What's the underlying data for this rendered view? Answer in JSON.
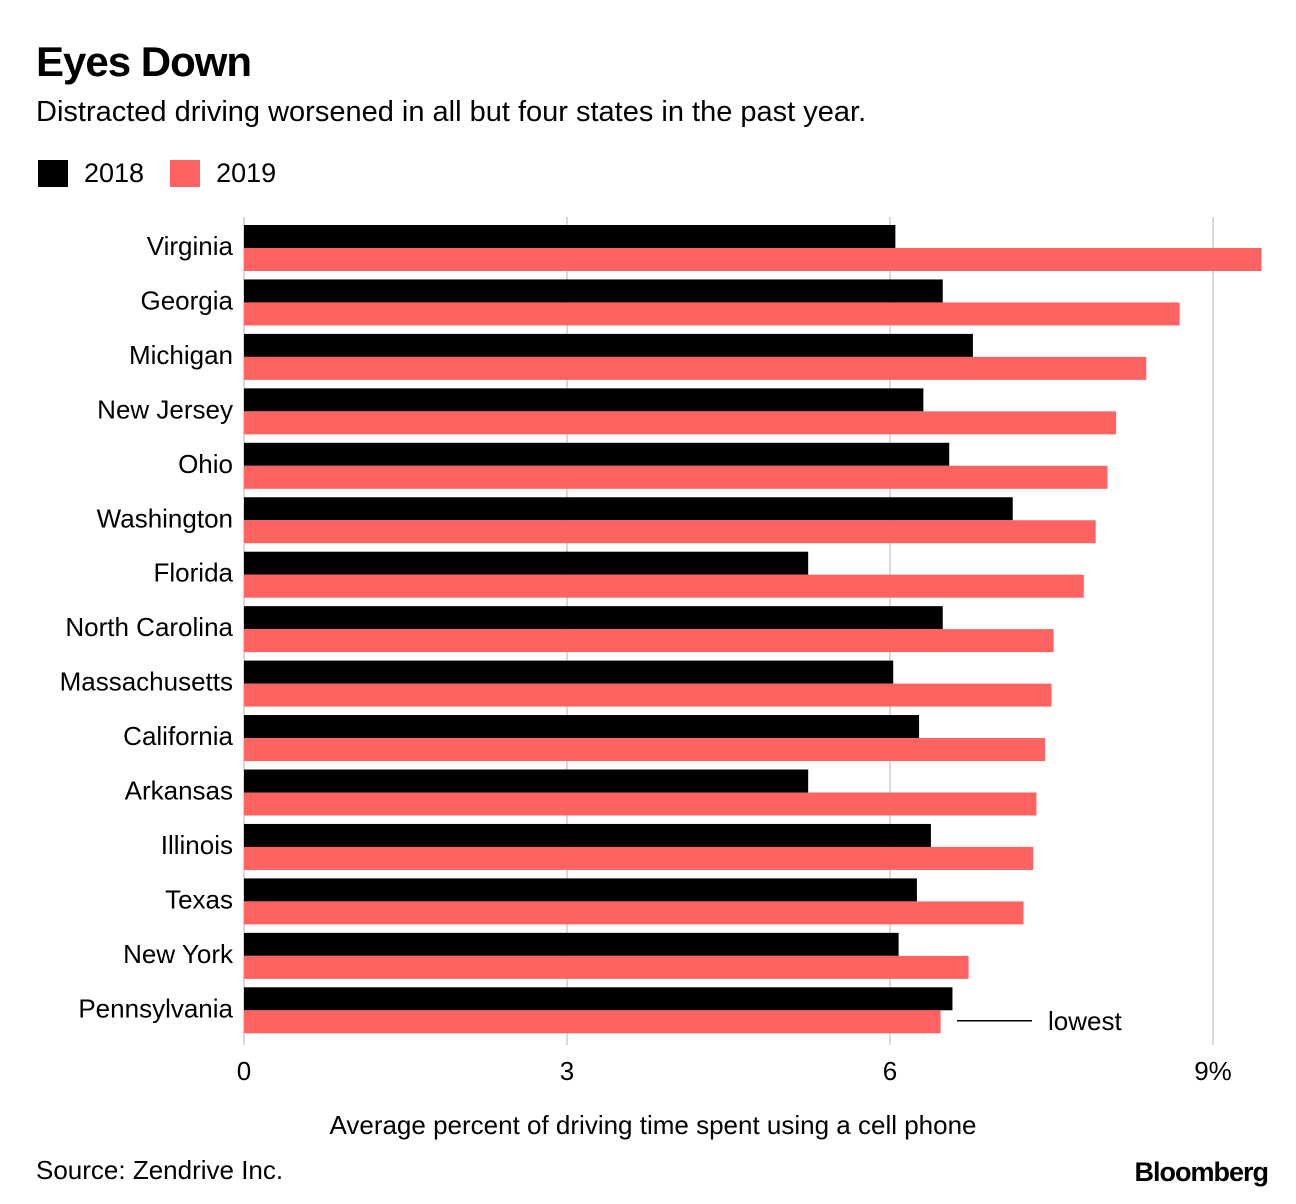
{
  "chart_data": {
    "type": "bar",
    "orientation": "horizontal",
    "title": "Eyes Down",
    "subtitle": "Distracted driving worsened in all but four states in the past year.",
    "xlabel": "Average percent of driving time spent using a cell phone",
    "xlim": [
      0,
      9.5
    ],
    "xticks": [
      "0",
      "3",
      "6",
      "9%"
    ],
    "xtick_values": [
      0,
      3,
      6,
      9
    ],
    "grid": true,
    "legend_position": "top-left",
    "categories": [
      "Virginia",
      "Georgia",
      "Michigan",
      "New Jersey",
      "Ohio",
      "Washington",
      "Florida",
      "North Carolina",
      "Massachusetts",
      "California",
      "Arkansas",
      "Illinois",
      "Texas",
      "New York",
      "Pennsylvania"
    ],
    "series": [
      {
        "name": "2018",
        "color": "#000000",
        "values": [
          6.05,
          6.49,
          6.77,
          6.31,
          6.55,
          7.14,
          5.24,
          6.49,
          6.03,
          6.27,
          5.24,
          6.38,
          6.25,
          6.08,
          6.58
        ]
      },
      {
        "name": "2019",
        "color": "#ff6361",
        "values": [
          9.45,
          8.69,
          8.38,
          8.1,
          8.02,
          7.91,
          7.8,
          7.52,
          7.5,
          7.44,
          7.36,
          7.33,
          7.24,
          6.73,
          6.47
        ]
      }
    ],
    "annotation": {
      "category": "Pennsylvania",
      "text": "lowest"
    },
    "source": "Source: Zendrive Inc.",
    "logo": "Bloomberg"
  }
}
